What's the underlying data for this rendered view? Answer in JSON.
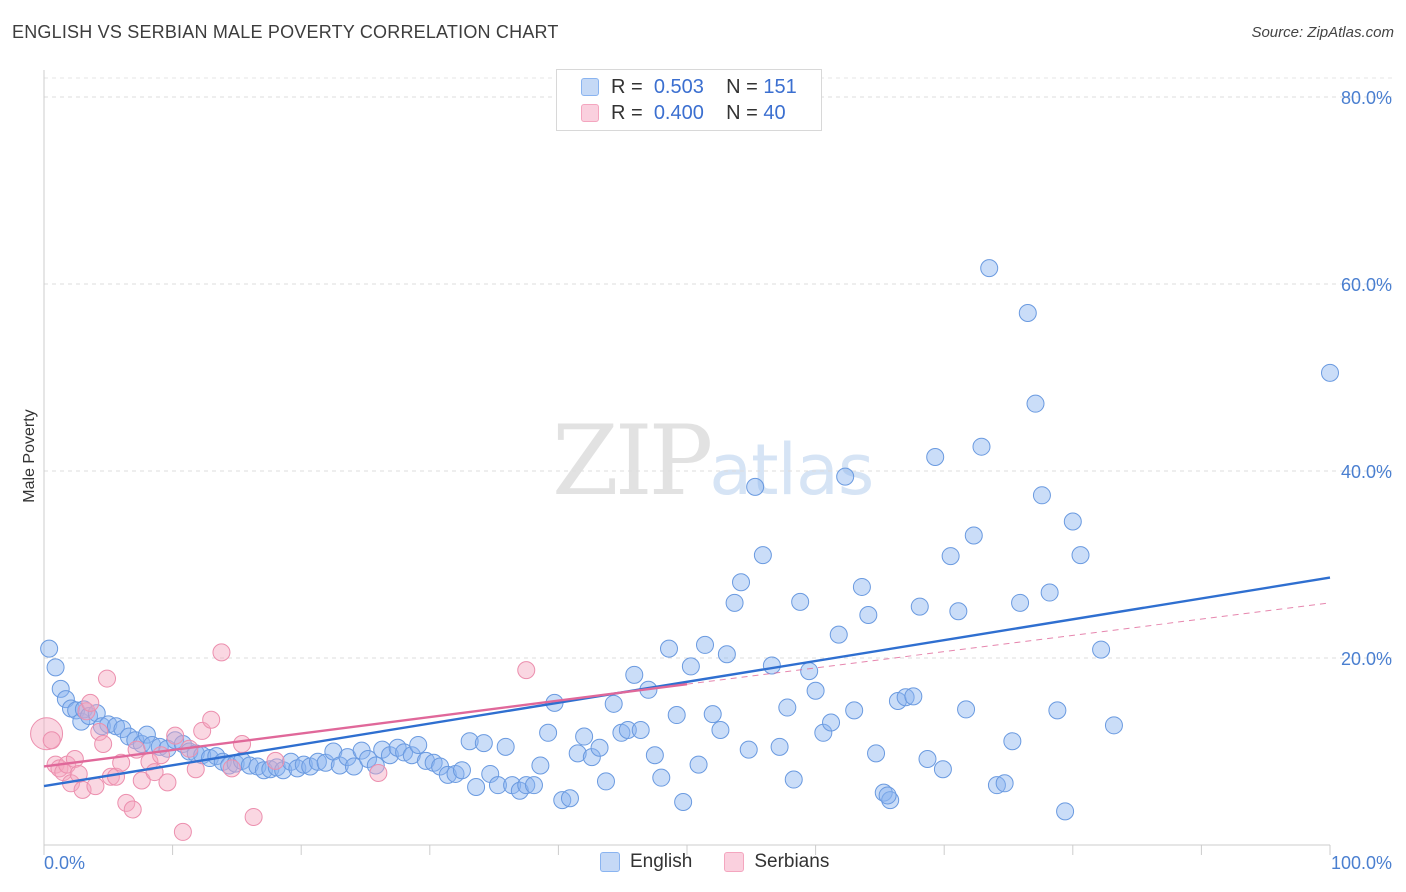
{
  "header": {
    "title": "ENGLISH VS SERBIAN MALE POVERTY CORRELATION CHART",
    "source": "Source: ZipAtlas.com"
  },
  "watermark": {
    "zip": "ZIP",
    "atlas": "atlas"
  },
  "legend": {
    "rows": [
      {
        "r_label": "R =",
        "r_value": "0.503",
        "n_label": "N =",
        "n_value": "151",
        "color": "#8ab4f0"
      },
      {
        "r_label": "R =",
        "r_value": "0.400",
        "n_label": "N =",
        "n_value": "40",
        "color": "#f4a6bf"
      }
    ]
  },
  "bottom_legend": {
    "english": "English",
    "serbians": "Serbians"
  },
  "chart_data": {
    "type": "scatter",
    "ylabel": "Male Poverty",
    "xlabel": "",
    "xlim": [
      0,
      100
    ],
    "ylim": [
      0,
      82
    ],
    "x_tick_labels": [
      "0.0%",
      "100.0%"
    ],
    "y_ticks": [
      20,
      40,
      60,
      80
    ],
    "y_tick_labels": [
      "20.0%",
      "40.0%",
      "60.0%",
      "80.0%"
    ],
    "grid": true,
    "series": [
      {
        "name": "English",
        "color": "#8ab4f0",
        "stroke": "#6a9ae0",
        "trend": {
          "x0": 0,
          "y0": 6.3,
          "x1": 100,
          "y1": 28.6,
          "color": "#2f6fd0"
        },
        "points": [
          [
            0.4,
            21
          ],
          [
            0.9,
            19
          ],
          [
            1.3,
            16.7
          ],
          [
            1.7,
            15.6
          ],
          [
            2.1,
            14.6
          ],
          [
            2.5,
            14.4
          ],
          [
            2.9,
            13.2
          ],
          [
            3.1,
            14.5
          ],
          [
            3.5,
            13.8
          ],
          [
            4.1,
            14.1
          ],
          [
            4.5,
            12.7
          ],
          [
            5.0,
            12.9
          ],
          [
            5.6,
            12.7
          ],
          [
            6.1,
            12.4
          ],
          [
            6.6,
            11.6
          ],
          [
            7.1,
            11.2
          ],
          [
            7.6,
            10.8
          ],
          [
            8.0,
            11.8
          ],
          [
            8.4,
            10.7
          ],
          [
            9.0,
            10.5
          ],
          [
            9.6,
            10.3
          ],
          [
            10.2,
            11.2
          ],
          [
            10.8,
            10.8
          ],
          [
            11.3,
            10.0
          ],
          [
            11.8,
            9.8
          ],
          [
            12.3,
            9.6
          ],
          [
            12.9,
            9.3
          ],
          [
            13.4,
            9.5
          ],
          [
            13.9,
            8.9
          ],
          [
            14.4,
            8.5
          ],
          [
            14.9,
            8.7
          ],
          [
            15.4,
            9.0
          ],
          [
            16.0,
            8.5
          ],
          [
            16.6,
            8.4
          ],
          [
            17.1,
            8.0
          ],
          [
            17.6,
            8.1
          ],
          [
            18.1,
            8.3
          ],
          [
            18.6,
            8.0
          ],
          [
            19.2,
            8.9
          ],
          [
            19.7,
            8.2
          ],
          [
            20.2,
            8.6
          ],
          [
            20.7,
            8.4
          ],
          [
            21.3,
            8.9
          ],
          [
            21.9,
            8.8
          ],
          [
            22.5,
            10.0
          ],
          [
            23.0,
            8.5
          ],
          [
            23.6,
            9.4
          ],
          [
            24.1,
            8.4
          ],
          [
            24.7,
            10.1
          ],
          [
            25.2,
            9.2
          ],
          [
            25.8,
            8.5
          ],
          [
            26.3,
            10.2
          ],
          [
            26.9,
            9.6
          ],
          [
            27.5,
            10.4
          ],
          [
            28.0,
            9.9
          ],
          [
            28.6,
            9.6
          ],
          [
            29.1,
            10.7
          ],
          [
            29.7,
            9.0
          ],
          [
            30.3,
            8.8
          ],
          [
            30.8,
            8.4
          ],
          [
            31.4,
            7.5
          ],
          [
            32.0,
            7.6
          ],
          [
            32.5,
            8.0
          ],
          [
            33.1,
            11.1
          ],
          [
            33.6,
            6.2
          ],
          [
            34.2,
            10.9
          ],
          [
            34.7,
            7.6
          ],
          [
            35.3,
            6.4
          ],
          [
            35.9,
            10.5
          ],
          [
            36.4,
            6.4
          ],
          [
            37.0,
            5.8
          ],
          [
            37.5,
            6.4
          ],
          [
            38.1,
            6.4
          ],
          [
            38.6,
            8.5
          ],
          [
            39.2,
            12.0
          ],
          [
            39.7,
            15.2
          ],
          [
            40.3,
            4.8
          ],
          [
            40.9,
            5.0
          ],
          [
            41.5,
            9.8
          ],
          [
            42.0,
            11.6
          ],
          [
            42.6,
            9.4
          ],
          [
            43.2,
            10.4
          ],
          [
            43.7,
            6.8
          ],
          [
            44.3,
            15.1
          ],
          [
            44.9,
            12.0
          ],
          [
            45.4,
            12.3
          ],
          [
            45.9,
            18.2
          ],
          [
            46.4,
            12.3
          ],
          [
            47.0,
            16.6
          ],
          [
            47.5,
            9.6
          ],
          [
            48.0,
            7.2
          ],
          [
            48.6,
            21.0
          ],
          [
            49.2,
            13.9
          ],
          [
            49.7,
            4.6
          ],
          [
            50.3,
            19.1
          ],
          [
            50.9,
            8.6
          ],
          [
            51.4,
            21.4
          ],
          [
            52.0,
            14.0
          ],
          [
            52.6,
            12.3
          ],
          [
            53.1,
            20.4
          ],
          [
            53.7,
            25.9
          ],
          [
            54.2,
            28.1
          ],
          [
            54.8,
            10.2
          ],
          [
            55.3,
            38.3
          ],
          [
            55.9,
            31.0
          ],
          [
            56.6,
            19.2
          ],
          [
            57.2,
            10.5
          ],
          [
            57.8,
            14.7
          ],
          [
            58.3,
            7.0
          ],
          [
            58.8,
            26.0
          ],
          [
            59.5,
            18.6
          ],
          [
            60.0,
            16.5
          ],
          [
            60.6,
            12.0
          ],
          [
            61.2,
            13.1
          ],
          [
            61.8,
            22.5
          ],
          [
            62.3,
            39.4
          ],
          [
            63.0,
            14.4
          ],
          [
            63.6,
            27.6
          ],
          [
            64.1,
            24.6
          ],
          [
            64.7,
            9.8
          ],
          [
            65.3,
            5.6
          ],
          [
            65.8,
            4.8
          ],
          [
            66.4,
            15.4
          ],
          [
            67.0,
            15.8
          ],
          [
            67.6,
            15.9
          ],
          [
            68.1,
            25.5
          ],
          [
            68.7,
            9.2
          ],
          [
            69.3,
            41.5
          ],
          [
            69.9,
            8.1
          ],
          [
            70.5,
            30.9
          ],
          [
            71.1,
            25.0
          ],
          [
            71.7,
            14.5
          ],
          [
            72.3,
            33.1
          ],
          [
            72.9,
            42.6
          ],
          [
            73.5,
            61.7
          ],
          [
            74.1,
            6.4
          ],
          [
            74.7,
            6.6
          ],
          [
            75.3,
            11.1
          ],
          [
            75.9,
            25.9
          ],
          [
            76.5,
            56.9
          ],
          [
            77.1,
            47.2
          ],
          [
            77.6,
            37.4
          ],
          [
            78.2,
            27.0
          ],
          [
            78.8,
            14.4
          ],
          [
            79.4,
            3.6
          ],
          [
            80.0,
            34.6
          ],
          [
            80.6,
            31.0
          ],
          [
            82.2,
            20.9
          ],
          [
            83.2,
            12.8
          ],
          [
            100.0,
            50.5
          ],
          [
            65.6,
            5.3
          ]
        ]
      },
      {
        "name": "Serbians",
        "color": "#f4a6bf",
        "stroke": "#ec8fae",
        "trend": {
          "x0": 0,
          "y0": 8.4,
          "x1": 50,
          "y1": 17.2,
          "color": "#e0689a"
        },
        "trend_ext": {
          "x0": 50,
          "y0": 17.2,
          "x1": 100,
          "y1": 25.9
        },
        "points": [
          [
            0.2,
            11.9
          ],
          [
            0.6,
            11.2
          ],
          [
            0.9,
            8.6
          ],
          [
            1.2,
            8.2
          ],
          [
            1.5,
            7.8
          ],
          [
            1.8,
            8.6
          ],
          [
            2.1,
            6.6
          ],
          [
            2.4,
            9.2
          ],
          [
            2.7,
            7.6
          ],
          [
            3.0,
            5.9
          ],
          [
            3.3,
            14.3
          ],
          [
            3.6,
            15.2
          ],
          [
            4.0,
            6.3
          ],
          [
            4.3,
            12.1
          ],
          [
            4.6,
            10.8
          ],
          [
            4.9,
            17.8
          ],
          [
            5.2,
            7.3
          ],
          [
            5.6,
            7.3
          ],
          [
            6.0,
            8.8
          ],
          [
            6.4,
            4.5
          ],
          [
            6.9,
            3.8
          ],
          [
            7.2,
            10.2
          ],
          [
            7.6,
            6.9
          ],
          [
            8.2,
            8.9
          ],
          [
            8.6,
            7.8
          ],
          [
            9.1,
            9.6
          ],
          [
            9.6,
            6.7
          ],
          [
            10.2,
            11.7
          ],
          [
            10.8,
            1.4
          ],
          [
            11.3,
            10.3
          ],
          [
            11.8,
            8.1
          ],
          [
            12.3,
            12.2
          ],
          [
            13.0,
            13.4
          ],
          [
            13.8,
            20.6
          ],
          [
            14.6,
            8.2
          ],
          [
            15.4,
            10.8
          ],
          [
            16.3,
            3.0
          ],
          [
            18.0,
            9.0
          ],
          [
            26.0,
            7.7
          ],
          [
            37.5,
            18.7
          ]
        ]
      }
    ]
  }
}
